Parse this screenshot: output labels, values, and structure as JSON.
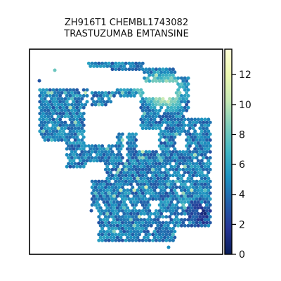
{
  "chart_data": {
    "type": "heatmap",
    "title_lines": [
      "ZH916T1 CHEMBL1743082",
      "TRASTUZUMAB EMTANSINE"
    ],
    "xlabel": "",
    "ylabel": "",
    "colorbar": {
      "colormap": "YlGnBu",
      "ticks": [
        0,
        2,
        4,
        6,
        8,
        10,
        12
      ],
      "tick_labels": [
        "0",
        "2",
        "4",
        "6",
        "8",
        "10",
        "12"
      ],
      "range": [
        0,
        13.7
      ]
    },
    "grid": false,
    "spots": "hexagonal spatial transcriptomics spots, values mostly 3–6 with peaks up to ~13 in the upper-right region"
  }
}
